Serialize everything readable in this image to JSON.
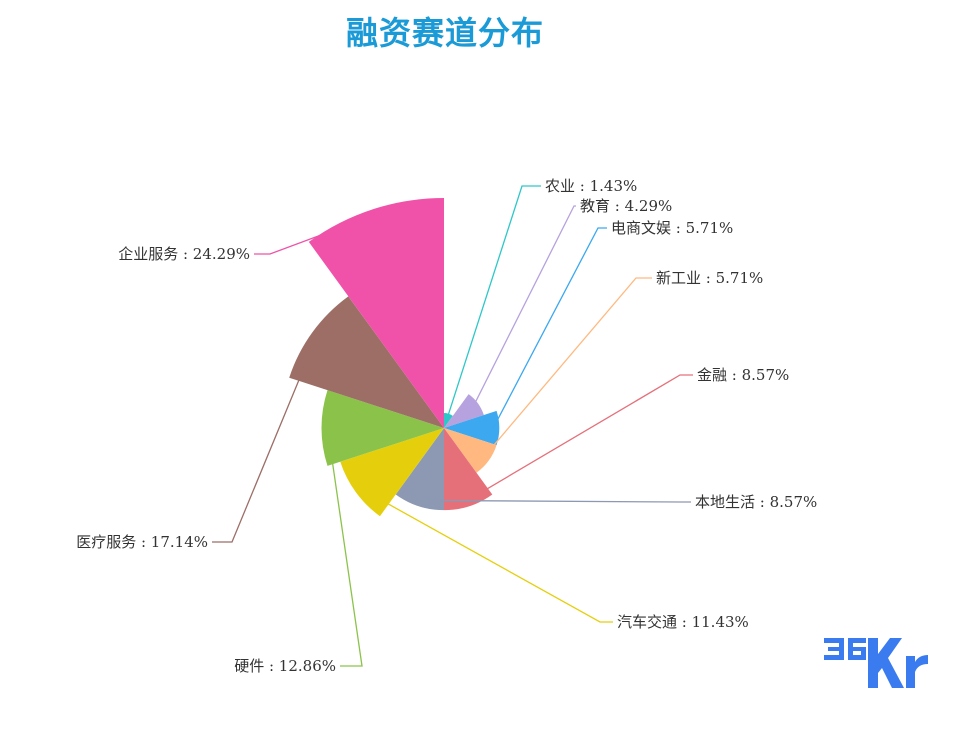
{
  "chart_data": {
    "type": "pie",
    "variant": "rose",
    "title": "融资赛道分布",
    "slices": [
      {
        "label": "农业",
        "value": 1.43,
        "display": "农业 : 1.43%",
        "color": "#2ec7c9"
      },
      {
        "label": "教育",
        "value": 4.29,
        "display": "教育 : 4.29%",
        "color": "#b6a2de"
      },
      {
        "label": "电商文娱",
        "value": 5.71,
        "display": "电商文娱 : 5.71%",
        "color": "#3ba8f0"
      },
      {
        "label": "新工业",
        "value": 5.71,
        "display": "新工业 : 5.71%",
        "color": "#ffb980"
      },
      {
        "label": "金融",
        "value": 8.57,
        "display": "金融 : 8.57%",
        "color": "#e5707a"
      },
      {
        "label": "本地生活",
        "value": 8.57,
        "display": "本地生活 : 8.57%",
        "color": "#8d98b3"
      },
      {
        "label": "汽车交通",
        "value": 11.43,
        "display": "汽车交通 : 11.43%",
        "color": "#e5cf0d"
      },
      {
        "label": "硬件",
        "value": 12.86,
        "display": "硬件 : 12.86%",
        "color": "#8bc34a"
      },
      {
        "label": "医疗服务",
        "value": 17.14,
        "display": "医疗服务 : 17.14%",
        "color": "#9c6e66"
      },
      {
        "label": "企业服务",
        "value": 24.29,
        "display": "企业服务 : 24.29%",
        "color": "#ef52a8"
      }
    ]
  },
  "logo": {
    "text": "36Kr",
    "color": "#3a7cf0"
  }
}
